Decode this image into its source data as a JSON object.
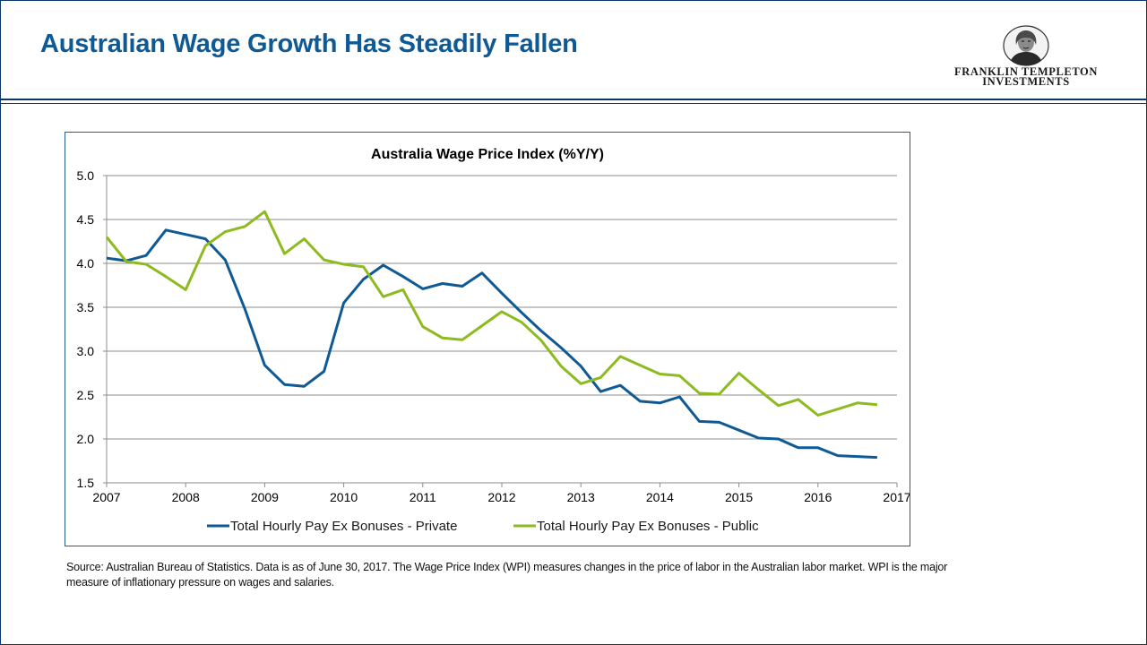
{
  "slide": {
    "title": "Australian Wage Growth Has Steadily Fallen",
    "logo": {
      "line1": "FRANKLIN TEMPLETON",
      "line2": "INVESTMENTS",
      "icon": "benjamin-franklin-portrait-icon"
    },
    "source": "Source: Australian Bureau of Statistics. Data is as of June 30, 2017. The Wage Price Index (WPI) measures changes in the price of labor in the Australian labor market. WPI is the major measure of inflationary pressure on wages and salaries."
  },
  "colors": {
    "title": "#0f5a94",
    "frame": "#0c3866",
    "private": "#0f5a94",
    "public": "#8dbb1f",
    "grid": "#8c8c8c"
  },
  "chart_data": {
    "type": "line",
    "title": "Australia Wage Price Index (%Y/Y)",
    "xlabel": "",
    "ylabel": "",
    "xlim": [
      2007,
      2017
    ],
    "ylim": [
      1.5,
      5.0
    ],
    "x_ticks": [
      "2007",
      "2008",
      "2009",
      "2010",
      "2011",
      "2012",
      "2013",
      "2014",
      "2015",
      "2016",
      "2017"
    ],
    "y_ticks": [
      "1.5",
      "2.0",
      "2.5",
      "3.0",
      "3.5",
      "4.0",
      "4.5",
      "5.0"
    ],
    "grid": "horizontal",
    "legend": "bottom",
    "series": [
      {
        "name": "Total Hourly Pay Ex Bonuses - Private",
        "color": "#0f5a94",
        "x": [
          2007.0,
          2007.25,
          2007.5,
          2007.75,
          2008.0,
          2008.25,
          2008.5,
          2008.75,
          2009.0,
          2009.25,
          2009.5,
          2009.75,
          2010.0,
          2010.25,
          2010.5,
          2010.75,
          2011.0,
          2011.25,
          2011.5,
          2011.75,
          2012.0,
          2012.25,
          2012.5,
          2012.75,
          2013.0,
          2013.25,
          2013.5,
          2013.75,
          2014.0,
          2014.25,
          2014.5,
          2014.75,
          2015.0,
          2015.25,
          2015.5,
          2015.75,
          2016.0,
          2016.25,
          2016.5,
          2016.75
        ],
        "values": [
          4.06,
          4.03,
          4.09,
          4.38,
          4.33,
          4.28,
          4.04,
          3.48,
          2.84,
          2.62,
          2.6,
          2.77,
          3.55,
          3.82,
          3.98,
          3.85,
          3.71,
          3.77,
          3.74,
          3.89,
          3.66,
          3.44,
          3.23,
          3.04,
          2.83,
          2.54,
          2.61,
          2.43,
          2.41,
          2.48,
          2.2,
          2.19,
          2.1,
          2.01,
          2.0,
          1.9,
          1.9,
          1.81,
          1.8,
          1.79
        ]
      },
      {
        "name": "Total Hourly Pay Ex Bonuses - Public",
        "color": "#8dbb1f",
        "x": [
          2007.0,
          2007.25,
          2007.5,
          2007.75,
          2008.0,
          2008.25,
          2008.5,
          2008.75,
          2009.0,
          2009.25,
          2009.5,
          2009.75,
          2010.0,
          2010.25,
          2010.5,
          2010.75,
          2011.0,
          2011.25,
          2011.5,
          2011.75,
          2012.0,
          2012.25,
          2012.5,
          2012.75,
          2013.0,
          2013.25,
          2013.5,
          2013.75,
          2014.0,
          2014.25,
          2014.5,
          2014.75,
          2015.0,
          2015.25,
          2015.5,
          2015.75,
          2016.0,
          2016.25,
          2016.5,
          2016.75
        ],
        "values": [
          4.3,
          4.02,
          3.99,
          3.85,
          3.7,
          4.2,
          4.36,
          4.42,
          4.59,
          4.11,
          4.28,
          4.04,
          3.99,
          3.96,
          3.62,
          3.7,
          3.28,
          3.15,
          3.13,
          3.29,
          3.45,
          3.33,
          3.12,
          2.83,
          2.63,
          2.7,
          2.94,
          2.84,
          2.74,
          2.72,
          2.52,
          2.51,
          2.75,
          2.56,
          2.38,
          2.45,
          2.27,
          2.34,
          2.41,
          2.39
        ]
      }
    ]
  }
}
